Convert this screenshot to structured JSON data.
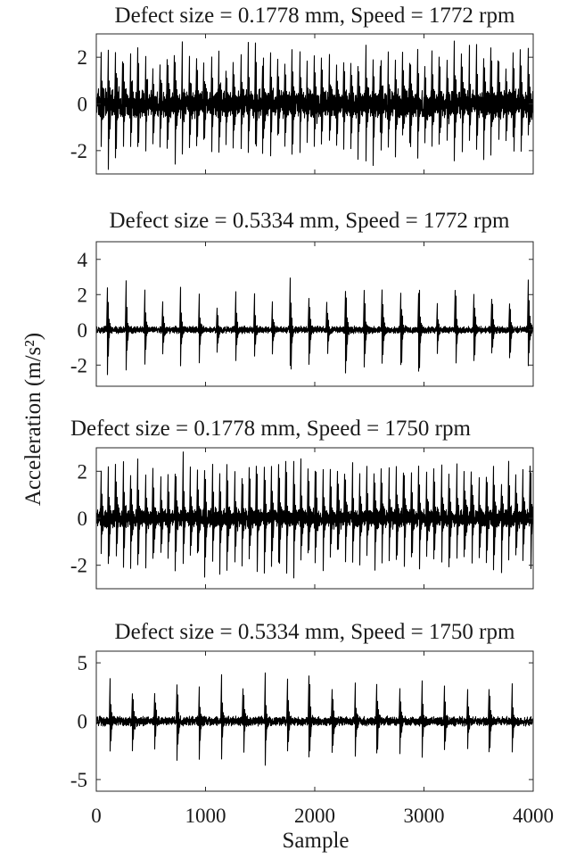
{
  "figure": {
    "shared_ylabel": "Acceleration (m/s²)",
    "shared_xlabel": "Sample",
    "xlim": [
      0,
      4000
    ],
    "xticks": [
      0,
      1000,
      2000,
      3000,
      4000
    ]
  },
  "chart_data": [
    {
      "type": "line",
      "title": "Defect size = 0.1778 mm, Speed = 1772 rpm",
      "series": [
        {
          "values": []
        }
      ],
      "xlabel": "",
      "ylabel": "",
      "xlim": [
        0,
        4000
      ],
      "ylim": [
        -3,
        3
      ],
      "yticks": [
        -2,
        0,
        2
      ],
      "ytick_labels": [
        "-2",
        "0",
        "2"
      ],
      "x_tick_labels_shown": false,
      "grid": false,
      "signal": {
        "n_samples": 4000,
        "impulse_period": 67.5,
        "peak_amplitude": 2.7,
        "noise_amplitude": 0.45,
        "spread": 0.2
      }
    },
    {
      "type": "line",
      "title": "Defect size = 0.5334 mm, Speed = 1772 rpm",
      "series": [
        {
          "values": []
        }
      ],
      "xlabel": "",
      "ylabel": "",
      "xlim": [
        0,
        4000
      ],
      "ylim": [
        -3.2,
        5
      ],
      "yticks": [
        -2,
        0,
        2,
        4
      ],
      "ytick_labels": [
        "-2",
        "0",
        "2",
        "4"
      ],
      "x_tick_labels_shown": false,
      "grid": false,
      "signal": {
        "n_samples": 4000,
        "impulse_period": 167,
        "peak_amplitude": 3.1,
        "noise_amplitude": 0.15,
        "spread": 0.45
      }
    },
    {
      "type": "line",
      "title": "Defect size = 0.1778 mm, Speed = 1750 rpm",
      "series": [
        {
          "values": []
        }
      ],
      "xlabel": "",
      "ylabel": "",
      "xlim": [
        0,
        4000
      ],
      "ylim": [
        -3,
        3
      ],
      "yticks": [
        -2,
        0,
        2
      ],
      "ytick_labels": [
        "-2",
        "0",
        "2"
      ],
      "x_tick_labels_shown": false,
      "grid": false,
      "signal": {
        "n_samples": 4000,
        "impulse_period": 68,
        "peak_amplitude": 2.6,
        "noise_amplitude": 0.3,
        "spread": 0.12
      }
    },
    {
      "type": "line",
      "title": "Defect size = 0.5334 mm, Speed = 1750 rpm",
      "series": [
        {
          "values": []
        }
      ],
      "xlabel": "Sample",
      "ylabel": "",
      "xlim": [
        0,
        4000
      ],
      "ylim": [
        -6,
        6
      ],
      "yticks": [
        -5,
        0,
        5
      ],
      "ytick_labels": [
        "-5",
        "0",
        "5"
      ],
      "x_tick_labels_shown": true,
      "xtick_labels": [
        "0",
        "1000",
        "2000",
        "3000",
        "4000"
      ],
      "grid": false,
      "signal": {
        "n_samples": 4000,
        "impulse_period": 205,
        "peak_amplitude": 4.3,
        "noise_amplitude": 0.3,
        "spread": 0.3
      }
    }
  ]
}
